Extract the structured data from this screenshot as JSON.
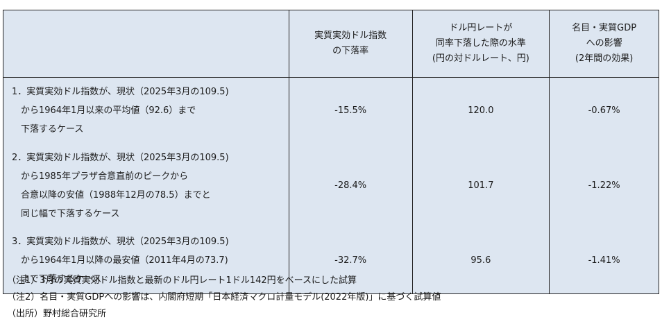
{
  "table": {
    "headers": [
      "",
      [
        "実質実効ドル指数",
        "の下落率"
      ],
      [
        "ドル円レートが",
        "同率下落した際の水準",
        "(円の対ドルレート、円)"
      ],
      [
        "名目・実質GDP",
        "への影響",
        "(2年間の効果)"
      ]
    ],
    "rows": [
      {
        "desc": [
          "1．実質実効ドル指数が、現状（2025年3月の109.5)",
          "　から1964年1月以来の平均値（92.6）まで",
          "　下落するケース"
        ],
        "decline": "-15.5%",
        "rate": "120.0",
        "gdp": "-0.67%"
      },
      {
        "desc": [
          "2．実質実効ドル指数が、現状（2025年3月の109.5)",
          "　から1985年プラザ合意直前のピークから",
          "　合意以降の安値（1988年12月の78.5）までと",
          "　同じ幅で下落するケース"
        ],
        "decline": "-28.4%",
        "rate": "101.7",
        "gdp": "-1.22%"
      },
      {
        "desc": [
          "3．実質実効ドル指数が、現状（2025年3月の109.5)",
          "　から1964年1月以降の最安値（2011年4月の73.7)",
          "　まで下落するケース"
        ],
        "decline": "-32.7%",
        "rate": "95.6",
        "gdp": "-1.41%"
      }
    ]
  },
  "notes": [
    "（注1）3月の実質実効ドル指数と最新のドル円レート1ドル142円をベースにした試算",
    "（注2）名目・実質GDPへの影響は、内閣府短期「日本経済マクロ計量モデル(2022年版)」に基づく試算値",
    "（出所）野村総合研究所"
  ]
}
